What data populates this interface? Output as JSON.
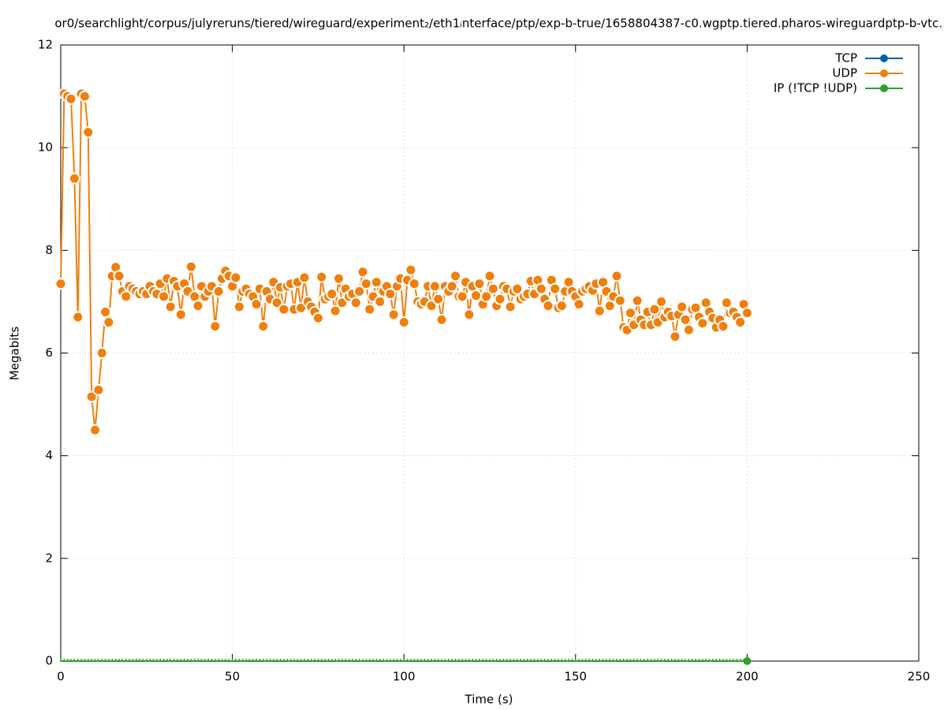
{
  "chart_data": {
    "type": "line",
    "title": "or0/searchlight/corpus/julyreruns/tiered/wireguard/experiment₂/eth1ᵢnterface/ptp/exp-b-true/1658804387-c0.wgptp.tiered.pharos-wireguardptp-b-vtc.",
    "xlabel": "Time (s)",
    "ylabel": "Megabits",
    "xlim": [
      0,
      250
    ],
    "xticks": [
      0,
      50,
      100,
      150,
      200,
      250
    ],
    "ylim": [
      0,
      12
    ],
    "yticks": [
      0,
      2,
      4,
      6,
      8,
      10,
      12
    ],
    "grid": true,
    "legend": "top-right",
    "x": [
      0,
      1,
      2,
      3,
      4,
      5,
      6,
      7,
      8,
      9,
      10,
      11,
      12,
      13,
      14,
      15,
      16,
      17,
      18,
      19,
      20,
      21,
      22,
      23,
      24,
      25,
      26,
      27,
      28,
      29,
      30,
      31,
      32,
      33,
      34,
      35,
      36,
      37,
      38,
      39,
      40,
      41,
      42,
      43,
      44,
      45,
      46,
      47,
      48,
      49,
      50,
      51,
      52,
      53,
      54,
      55,
      56,
      57,
      58,
      59,
      60,
      61,
      62,
      63,
      64,
      65,
      66,
      67,
      68,
      69,
      70,
      71,
      72,
      73,
      74,
      75,
      76,
      77,
      78,
      79,
      80,
      81,
      82,
      83,
      84,
      85,
      86,
      87,
      88,
      89,
      90,
      91,
      92,
      93,
      94,
      95,
      96,
      97,
      98,
      99,
      100,
      101,
      102,
      103,
      104,
      105,
      106,
      107,
      108,
      109,
      110,
      111,
      112,
      113,
      114,
      115,
      116,
      117,
      118,
      119,
      120,
      121,
      122,
      123,
      124,
      125,
      126,
      127,
      128,
      129,
      130,
      131,
      132,
      133,
      134,
      135,
      136,
      137,
      138,
      139,
      140,
      141,
      142,
      143,
      144,
      145,
      146,
      147,
      148,
      149,
      150,
      151,
      152,
      153,
      154,
      155,
      156,
      157,
      158,
      159,
      160,
      161,
      162,
      163,
      164,
      165,
      166,
      167,
      168,
      169,
      170,
      171,
      172,
      173,
      174,
      175,
      176,
      177,
      178,
      179,
      180,
      181,
      182,
      183,
      184,
      185,
      186,
      187,
      188,
      189,
      190,
      191,
      192,
      193,
      194,
      195,
      196,
      197,
      198,
      199,
      200
    ],
    "series": [
      {
        "name": "TCP",
        "color": "#0060ad",
        "values": [
          null,
          null,
          null,
          null,
          null,
          null,
          null,
          null,
          null,
          null,
          null,
          null,
          null,
          null,
          null,
          null,
          null,
          null,
          null,
          null,
          null,
          null,
          null,
          null,
          null,
          null,
          null,
          null,
          null,
          null,
          null,
          null,
          null,
          null,
          null,
          null,
          null,
          null,
          null,
          null,
          null,
          null,
          null,
          null,
          null,
          null,
          null,
          null,
          null,
          null,
          null,
          null,
          null,
          null,
          null,
          null,
          null,
          null,
          null,
          null,
          null,
          null,
          null,
          null,
          null,
          null,
          null,
          null,
          null,
          null,
          null,
          null,
          null,
          null,
          null,
          null,
          null,
          null,
          null,
          null,
          null,
          null,
          null,
          null,
          null,
          null,
          null,
          null,
          null,
          null,
          null,
          null,
          null,
          null,
          null,
          null,
          null,
          null,
          null,
          null,
          null,
          null,
          null,
          null,
          null,
          null,
          null,
          null,
          null,
          null,
          null,
          null,
          null,
          null,
          null,
          null,
          null,
          null,
          null,
          null,
          null,
          null,
          null,
          null,
          null,
          null,
          null,
          null,
          null,
          null,
          null,
          null,
          null,
          null,
          null,
          null,
          null,
          null,
          null,
          null,
          null,
          null,
          null,
          null,
          null,
          null,
          null,
          null,
          null,
          null,
          null,
          null,
          null,
          null,
          null,
          null,
          null,
          null,
          null,
          null,
          null,
          null,
          null,
          null,
          null,
          null,
          null,
          null,
          null,
          null,
          null,
          null,
          null,
          null,
          null,
          null,
          null,
          null,
          null,
          null,
          null,
          null,
          null,
          null,
          null,
          null,
          null,
          null,
          null,
          null,
          null,
          null,
          null,
          null,
          null,
          null,
          null,
          null,
          null,
          null,
          null
        ]
      },
      {
        "name": "UDP",
        "color": "#f07f0e",
        "values": [
          7.35,
          11.05,
          11.0,
          10.95,
          9.4,
          6.7,
          11.05,
          11.0,
          10.3,
          5.15,
          4.5,
          5.28,
          6.0,
          6.8,
          6.6,
          7.5,
          7.67,
          7.5,
          7.2,
          7.1,
          7.3,
          7.25,
          7.2,
          7.15,
          7.2,
          7.15,
          7.3,
          7.2,
          7.15,
          7.35,
          7.1,
          7.45,
          6.9,
          7.4,
          7.3,
          6.75,
          7.35,
          7.2,
          7.68,
          7.1,
          6.92,
          7.3,
          7.1,
          7.2,
          7.3,
          6.52,
          7.2,
          7.45,
          7.6,
          7.5,
          7.3,
          7.47,
          6.9,
          7.2,
          7.25,
          7.15,
          7.1,
          6.95,
          7.25,
          6.52,
          7.2,
          7.05,
          7.38,
          6.98,
          7.28,
          6.85,
          7.3,
          7.35,
          6.85,
          7.38,
          6.88,
          7.47,
          7.0,
          6.9,
          6.8,
          6.68,
          7.48,
          7.05,
          7.1,
          7.15,
          6.82,
          7.45,
          6.98,
          7.25,
          7.1,
          7.15,
          6.98,
          7.2,
          7.58,
          7.35,
          6.85,
          7.1,
          7.38,
          7.0,
          7.2,
          7.3,
          7.15,
          6.75,
          7.3,
          7.45,
          6.6,
          7.42,
          7.62,
          7.35,
          7.0,
          6.95,
          7.0,
          7.3,
          6.92,
          7.3,
          7.05,
          6.65,
          7.3,
          7.2,
          7.3,
          7.5,
          7.1,
          7.1,
          7.38,
          6.75,
          7.3,
          7.12,
          7.35,
          6.95,
          7.1,
          7.5,
          7.25,
          6.92,
          7.05,
          7.3,
          7.25,
          6.9,
          7.2,
          7.25,
          7.05,
          7.1,
          7.15,
          7.4,
          7.15,
          7.42,
          7.25,
          7.05,
          6.92,
          7.42,
          7.25,
          6.88,
          6.92,
          7.2,
          7.38,
          7.2,
          7.1,
          6.95,
          7.2,
          7.25,
          7.3,
          7.22,
          7.35,
          6.82,
          7.38,
          7.2,
          6.92,
          7.1,
          7.5,
          7.02,
          6.5,
          6.45,
          6.78,
          6.55,
          7.02,
          6.65,
          6.55,
          6.8,
          6.55,
          6.85,
          6.6,
          7.0,
          6.7,
          6.8,
          6.72,
          6.32,
          6.75,
          6.9,
          6.65,
          6.45,
          6.85,
          6.88,
          6.7,
          6.58,
          6.98,
          6.8,
          6.68,
          6.5,
          6.65,
          6.52,
          6.98,
          6.78,
          6.8,
          6.7,
          6.6,
          6.95,
          6.78
        ]
      },
      {
        "name": "IP (!TCP  !UDP)",
        "color": "#2ca02c",
        "values": [
          0,
          0,
          0,
          0,
          0,
          0,
          0,
          0,
          0,
          0,
          0,
          0,
          0,
          0,
          0,
          0,
          0,
          0,
          0,
          0,
          0,
          0,
          0,
          0,
          0,
          0,
          0,
          0,
          0,
          0,
          0,
          0,
          0,
          0,
          0,
          0,
          0,
          0,
          0,
          0,
          0,
          0,
          0,
          0,
          0,
          0,
          0,
          0,
          0,
          0,
          0,
          0,
          0,
          0,
          0,
          0,
          0,
          0,
          0,
          0,
          0,
          0,
          0,
          0,
          0,
          0,
          0,
          0,
          0,
          0,
          0,
          0,
          0,
          0,
          0,
          0,
          0,
          0,
          0,
          0,
          0,
          0,
          0,
          0,
          0,
          0,
          0,
          0,
          0,
          0,
          0,
          0,
          0,
          0,
          0,
          0,
          0,
          0,
          0,
          0,
          0,
          0,
          0,
          0,
          0,
          0,
          0,
          0,
          0,
          0,
          0,
          0,
          0,
          0,
          0,
          0,
          0,
          0,
          0,
          0,
          0,
          0,
          0,
          0,
          0,
          0,
          0,
          0,
          0,
          0,
          0,
          0,
          0,
          0,
          0,
          0,
          0,
          0,
          0,
          0,
          0,
          0,
          0,
          0,
          0,
          0,
          0,
          0,
          0,
          0,
          0,
          0,
          0,
          0,
          0,
          0,
          0,
          0,
          0,
          0,
          0,
          0,
          0,
          0,
          0,
          0,
          0,
          0,
          0,
          0,
          0,
          0,
          0,
          0,
          0,
          0,
          0,
          0,
          0,
          0,
          0,
          0,
          0,
          0,
          0,
          0,
          0,
          0,
          0,
          0,
          0,
          0,
          0,
          0,
          0,
          0,
          0,
          0,
          0,
          0,
          0
        ]
      }
    ]
  }
}
